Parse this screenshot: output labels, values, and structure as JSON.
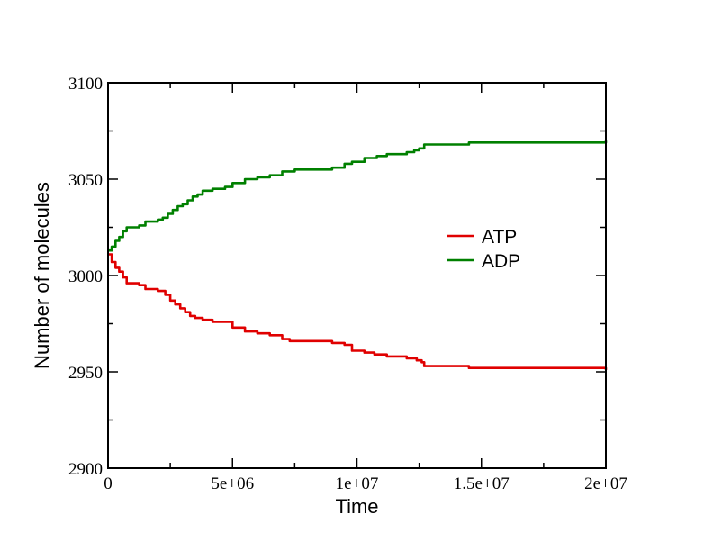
{
  "chart_data": {
    "type": "line",
    "title": "",
    "xlabel": "Time",
    "ylabel": "Number of molecules",
    "xlim": [
      0,
      20000000
    ],
    "ylim": [
      2900,
      3100
    ],
    "x_ticks": [
      0,
      5000000,
      10000000,
      15000000,
      20000000
    ],
    "x_tick_labels": [
      "0",
      "5e+06",
      "1e+07",
      "1.5e+07",
      "2e+07"
    ],
    "y_ticks": [
      2900,
      2950,
      3000,
      3050,
      3100
    ],
    "y_tick_labels": [
      "2900",
      "2950",
      "3000",
      "3050",
      "3100"
    ],
    "grid": false,
    "legend_position": "center-right",
    "series": [
      {
        "name": "ATP",
        "color": "#e00000",
        "step": true,
        "x": [
          0,
          150000,
          300000,
          450000,
          600000,
          750000,
          1000000,
          1250000,
          1500000,
          2000000,
          2300000,
          2500000,
          2700000,
          2900000,
          3100000,
          3300000,
          3500000,
          3800000,
          4200000,
          4600000,
          5000000,
          5500000,
          6000000,
          6500000,
          7000000,
          7300000,
          8000000,
          9000000,
          9500000,
          9800000,
          10300000,
          10700000,
          11200000,
          12000000,
          12400000,
          12600000,
          12700000,
          14500000,
          20000000
        ],
        "values": [
          3011,
          3007,
          3004,
          3002,
          2999,
          2996,
          2996,
          2995,
          2993,
          2992,
          2990,
          2987,
          2985,
          2983,
          2981,
          2979,
          2978,
          2977,
          2976,
          2976,
          2973,
          2971,
          2970,
          2969,
          2967,
          2966,
          2966,
          2965,
          2964,
          2961,
          2960,
          2959,
          2958,
          2957,
          2956,
          2955,
          2953,
          2952,
          2951
        ]
      },
      {
        "name": "ADP",
        "color": "#008000",
        "step": true,
        "x": [
          0,
          150000,
          300000,
          450000,
          600000,
          750000,
          1000000,
          1250000,
          1500000,
          2000000,
          2200000,
          2400000,
          2600000,
          2800000,
          3000000,
          3200000,
          3400000,
          3600000,
          3800000,
          4200000,
          4700000,
          5000000,
          5500000,
          6000000,
          6500000,
          7000000,
          7500000,
          8000000,
          8500000,
          9000000,
          9500000,
          9800000,
          10300000,
          10800000,
          11200000,
          12000000,
          12300000,
          12500000,
          12700000,
          14500000,
          20000000
        ],
        "values": [
          3013,
          3015,
          3018,
          3020,
          3023,
          3025,
          3025,
          3026,
          3028,
          3029,
          3030,
          3032,
          3034,
          3036,
          3037,
          3039,
          3041,
          3042,
          3044,
          3045,
          3046,
          3048,
          3050,
          3051,
          3052,
          3054,
          3055,
          3055,
          3055,
          3056,
          3058,
          3059,
          3061,
          3062,
          3063,
          3064,
          3065,
          3066,
          3068,
          3069,
          3070
        ]
      }
    ]
  }
}
